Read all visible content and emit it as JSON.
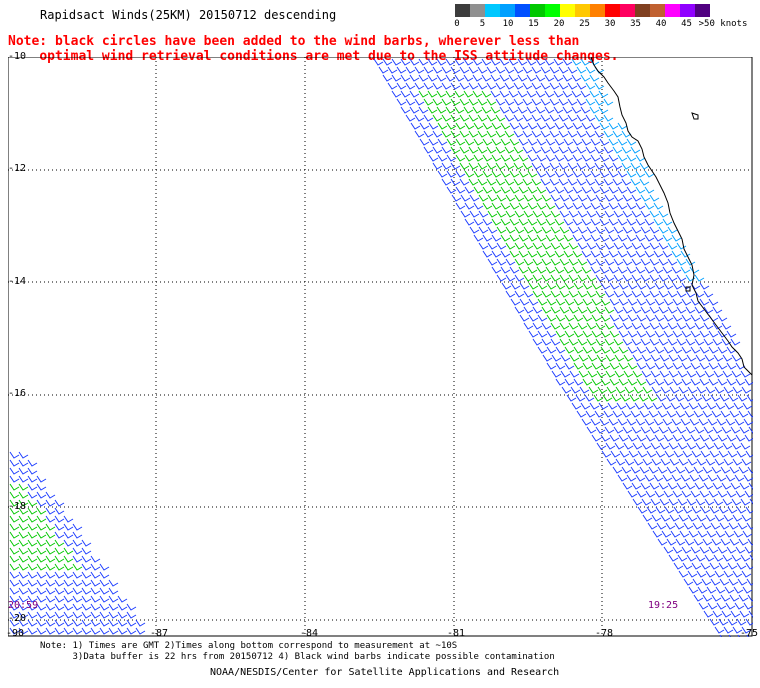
{
  "title": "Rapidsact Winds(25KM) 20150712 descending",
  "note": {
    "line1": "Note: black circles have been added to the wind barbs, wherever less than",
    "line2": "optimal wind retrieval conditions are met due to the ISS attitude changes."
  },
  "legend": {
    "unit": "knots",
    "labels": [
      "0",
      "5",
      "10",
      "15",
      "20",
      "25",
      "30",
      "35",
      "40",
      "45",
      ">50 knots"
    ],
    "colors": [
      "#3c3c3c",
      "#909090",
      "#00c8ff",
      "#00a0ff",
      "#0050ff",
      "#00c800",
      "#00ff00",
      "#ffff00",
      "#ffc800",
      "#ff8000",
      "#ff0000",
      "#ff0060",
      "#804020",
      "#c06030",
      "#ff00ff",
      "#9000ff",
      "#500080"
    ]
  },
  "map": {
    "lat_labels": [
      "-10",
      "-12",
      "-14",
      "-16",
      "-18",
      "-20"
    ],
    "lon_labels": [
      "-90",
      "-87",
      "-84",
      "-81",
      "-78",
      "-75"
    ],
    "times": [
      "20:59",
      "19:25"
    ],
    "barb_colors": {
      "calm": "#1c3cff",
      "moderate": "#00c800",
      "light": "#00a0ff"
    }
  },
  "footer": {
    "note_line1": "Note: 1) Times are GMT 2)Times along bottom correspond to measurement at ~10S",
    "note_line2": "3)Data buffer is 22 hrs from 20150712 4) Black wind barbs indicate possible contamination",
    "credit": "NOAA/NESDIS/Center for Satellite Applications and Research"
  }
}
